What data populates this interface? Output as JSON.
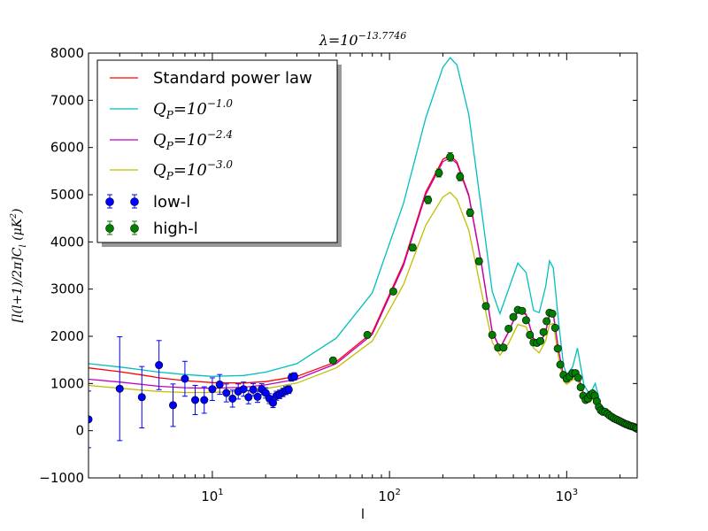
{
  "chart_data": {
    "type": "line",
    "title": "λ=10^−13.7746",
    "title_base": "λ=10",
    "title_exp": "−13.7746",
    "xlabel": "l",
    "ylabel": "[l(l+1)/2π]C_l (μK²)",
    "ylabel_main": "[l(l+1)/2π]C",
    "ylabel_sub": "l",
    "ylabel_units": " (μK",
    "ylabel_units_sup": "2",
    "ylabel_units_close": ")",
    "xscale": "log",
    "xlim": [
      2,
      2500
    ],
    "ylim": [
      -1000,
      8000
    ],
    "y_ticks": [
      -1000,
      0,
      1000,
      2000,
      3000,
      4000,
      5000,
      6000,
      7000,
      8000
    ],
    "x_ticks": [
      {
        "value": 10,
        "base": "10",
        "exp": "1"
      },
      {
        "value": 100,
        "base": "10",
        "exp": "2"
      },
      {
        "value": 1000,
        "base": "10",
        "exp": "3"
      }
    ],
    "legend_position": "upper-left",
    "series": [
      {
        "name": "Standard power law",
        "kind": "line",
        "color": "#ff0000",
        "x": [
          2,
          3,
          4,
          5,
          7,
          10,
          15,
          20,
          30,
          50,
          80,
          120,
          160,
          200,
          220,
          240,
          280,
          330,
          380,
          420,
          470,
          530,
          590,
          650,
          700,
          760,
          800,
          840,
          900,
          960,
          1000,
          1080,
          1150,
          1250,
          1350,
          1450,
          1550,
          1700,
          1900,
          2100,
          2300,
          2500
        ],
        "y": [
          1330,
          1250,
          1180,
          1120,
          1060,
          1020,
          1010,
          1040,
          1150,
          1460,
          2080,
          3550,
          5050,
          5750,
          5830,
          5700,
          5000,
          3550,
          2100,
          1750,
          2100,
          2550,
          2470,
          1950,
          1820,
          2100,
          2450,
          2480,
          1700,
          1150,
          1050,
          1150,
          1200,
          780,
          650,
          800,
          480,
          380,
          250,
          170,
          120,
          60
        ]
      },
      {
        "name": "Q_P=10^−1.0",
        "label_base": "Q",
        "label_sub": "P",
        "label_mid": "=10",
        "label_exp": "−1.0",
        "kind": "line",
        "color": "#00bfbf",
        "x": [
          2,
          3,
          4,
          5,
          7,
          10,
          15,
          20,
          30,
          50,
          80,
          120,
          160,
          200,
          220,
          240,
          280,
          330,
          380,
          420,
          470,
          530,
          590,
          650,
          700,
          760,
          800,
          840,
          900,
          960,
          1000,
          1080,
          1150,
          1250,
          1350,
          1450,
          1550,
          1700,
          1900,
          2100,
          2300,
          2500
        ],
        "y": [
          1420,
          1350,
          1290,
          1240,
          1190,
          1150,
          1170,
          1240,
          1420,
          1960,
          2920,
          4820,
          6620,
          7700,
          7900,
          7750,
          6700,
          4700,
          2950,
          2480,
          3000,
          3550,
          3350,
          2550,
          2500,
          3050,
          3600,
          3450,
          2300,
          1380,
          1180,
          1350,
          1750,
          980,
          760,
          1000,
          560,
          420,
          280,
          190,
          130,
          70
        ]
      },
      {
        "name": "Q_P=10^−2.4",
        "label_base": "Q",
        "label_sub": "P",
        "label_mid": "=10",
        "label_exp": "−2.4",
        "kind": "line",
        "color": "#bf00bf",
        "x": [
          2,
          3,
          4,
          5,
          7,
          10,
          15,
          20,
          30,
          50,
          80,
          120,
          160,
          200,
          220,
          240,
          280,
          330,
          380,
          420,
          470,
          530,
          590,
          650,
          700,
          760,
          800,
          840,
          900,
          960,
          1000,
          1080,
          1150,
          1250,
          1350,
          1450,
          1550,
          1700,
          1900,
          2100,
          2300,
          2500
        ],
        "y": [
          1090,
          1030,
          980,
          940,
          910,
          900,
          920,
          970,
          1090,
          1420,
          2040,
          3500,
          5000,
          5700,
          5780,
          5660,
          4970,
          3540,
          2090,
          1740,
          2090,
          2540,
          2460,
          1940,
          1810,
          2090,
          2440,
          2470,
          1700,
          1150,
          1050,
          1150,
          1200,
          780,
          650,
          800,
          480,
          380,
          250,
          170,
          120,
          60
        ]
      },
      {
        "name": "Q_P=10^−3.0",
        "label_base": "Q",
        "label_sub": "P",
        "label_mid": "=10",
        "label_exp": "−3.0",
        "kind": "line",
        "color": "#bfbf00",
        "x": [
          2,
          3,
          4,
          5,
          7,
          10,
          15,
          20,
          30,
          50,
          80,
          120,
          160,
          200,
          220,
          240,
          280,
          330,
          380,
          420,
          470,
          530,
          590,
          650,
          700,
          760,
          800,
          840,
          900,
          960,
          1000,
          1080,
          1150,
          1250,
          1350,
          1450,
          1550,
          1700,
          1900,
          2100,
          2300,
          2500
        ],
        "y": [
          960,
          900,
          860,
          830,
          810,
          810,
          840,
          890,
          1010,
          1330,
          1900,
          3100,
          4350,
          4950,
          5050,
          4900,
          4250,
          2950,
          1880,
          1600,
          1850,
          2250,
          2200,
          1750,
          1650,
          1900,
          2250,
          2270,
          1550,
          1050,
          980,
          1080,
          1100,
          720,
          600,
          740,
          450,
          360,
          240,
          160,
          110,
          60
        ]
      },
      {
        "name": "low-l",
        "kind": "errorbar",
        "color": "#0000ff",
        "x": [
          2,
          3,
          4,
          5,
          6,
          7,
          8,
          9,
          10,
          11,
          12,
          13,
          14,
          15,
          16,
          17,
          18,
          19,
          20,
          21,
          22,
          23,
          24,
          25,
          26,
          27,
          28,
          29
        ],
        "y": [
          240,
          890,
          710,
          1390,
          540,
          1100,
          650,
          650,
          880,
          980,
          800,
          680,
          830,
          880,
          710,
          870,
          720,
          880,
          800,
          680,
          590,
          740,
          770,
          810,
          850,
          870,
          1130,
          1150
        ],
        "err": [
          600,
          1100,
          650,
          520,
          450,
          370,
          310,
          280,
          240,
          210,
          190,
          180,
          160,
          150,
          140,
          130,
          120,
          115,
          110,
          105,
          100,
          95,
          90,
          88,
          85,
          82,
          80,
          78
        ]
      },
      {
        "name": "high-l",
        "kind": "errorbar",
        "color": "#007f00",
        "x": [
          48,
          75,
          105,
          135,
          165,
          190,
          220,
          250,
          285,
          320,
          350,
          380,
          410,
          440,
          470,
          500,
          530,
          560,
          590,
          620,
          650,
          680,
          710,
          740,
          770,
          800,
          830,
          860,
          890,
          920,
          960,
          1000,
          1040,
          1080,
          1120,
          1160,
          1200,
          1240,
          1280,
          1320,
          1360,
          1400,
          1440,
          1480,
          1520,
          1560,
          1600,
          1650,
          1700,
          1750,
          1800,
          1850,
          1900,
          1950,
          2000,
          2050,
          2100,
          2150,
          2200,
          2250,
          2300,
          2350,
          2400,
          2450,
          2500
        ],
        "y": [
          1490,
          2030,
          2950,
          3880,
          4890,
          5460,
          5800,
          5380,
          4620,
          3590,
          2640,
          2030,
          1760,
          1760,
          2160,
          2410,
          2560,
          2540,
          2340,
          2030,
          1870,
          1860,
          1900,
          2090,
          2320,
          2500,
          2480,
          2180,
          1740,
          1400,
          1180,
          1100,
          1150,
          1220,
          1220,
          1120,
          920,
          740,
          650,
          680,
          760,
          790,
          740,
          620,
          500,
          430,
          400,
          400,
          360,
          320,
          290,
          260,
          240,
          220,
          200,
          180,
          160,
          140,
          130,
          110,
          100,
          90,
          80,
          60,
          40
        ],
        "err": [
          50,
          50,
          60,
          70,
          80,
          85,
          90,
          85,
          80,
          70,
          60,
          50,
          45,
          45,
          45,
          45,
          45,
          45,
          40,
          40,
          40,
          40,
          40,
          40,
          45,
          45,
          45,
          40,
          40,
          35,
          35,
          35,
          35,
          35,
          40,
          40,
          40,
          40,
          40,
          40,
          40,
          40,
          40,
          40,
          40,
          40,
          40,
          40,
          40,
          40,
          40,
          40,
          40,
          40,
          40,
          40,
          40,
          40,
          40,
          40,
          40,
          40,
          40,
          40,
          40
        ]
      }
    ]
  }
}
